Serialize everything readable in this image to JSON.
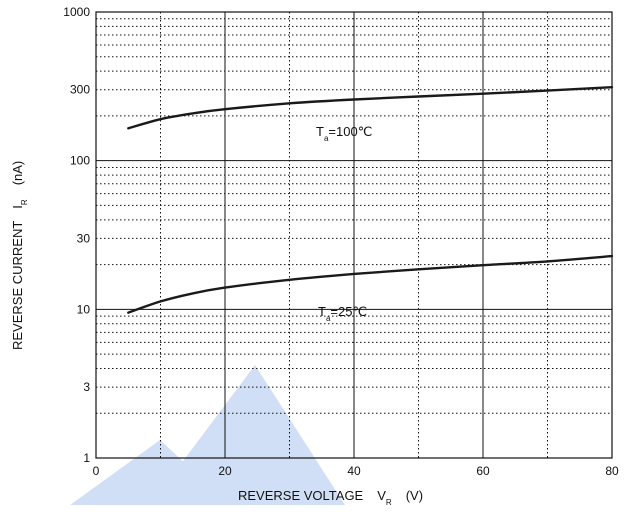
{
  "chart_data": {
    "type": "line",
    "xlabel": {
      "text": "REVERSE VOLTAGE",
      "symbol": "V",
      "subscript": "R",
      "unit": "(V)"
    },
    "ylabel": {
      "text": "REVERSE CURRENT",
      "symbol": "I",
      "subscript": "R",
      "unit": "(nA)"
    },
    "xlim": [
      0,
      80
    ],
    "ylim": [
      1,
      1000
    ],
    "yscale": "log",
    "grid": true,
    "x_ticks": [
      "0",
      "20",
      "40",
      "60",
      "80"
    ],
    "x_tick_values": [
      0,
      20,
      40,
      60,
      80
    ],
    "y_ticks": [
      "1",
      "3",
      "10",
      "30",
      "100",
      "300",
      "1000"
    ],
    "y_tick_values": [
      1,
      3,
      10,
      30,
      100,
      300,
      1000
    ],
    "series": [
      {
        "annotation": {
          "prefix": "T",
          "subscript": "a",
          "suffix": "=100℃"
        },
        "x": [
          5,
          10,
          15,
          20,
          30,
          40,
          50,
          60,
          70,
          80
        ],
        "y": [
          165,
          190,
          208,
          222,
          243,
          258,
          270,
          282,
          296,
          312
        ]
      },
      {
        "annotation": {
          "prefix": "T",
          "subscript": "a",
          "suffix": "=25℃"
        },
        "x": [
          5,
          10,
          15,
          20,
          30,
          40,
          50,
          60,
          70,
          80
        ],
        "y": [
          9.5,
          11.3,
          12.8,
          14.0,
          15.8,
          17.3,
          18.6,
          19.8,
          21.0,
          22.8
        ]
      }
    ],
    "colors": {
      "line": "#1a1a1a",
      "grid": "#111111",
      "watermark": "#2f6ed8"
    }
  }
}
